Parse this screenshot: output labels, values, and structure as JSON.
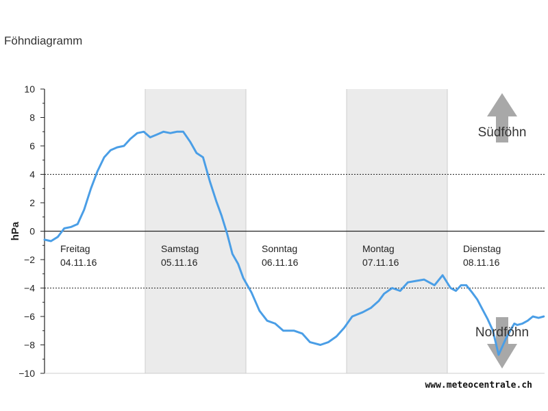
{
  "page": {
    "title": "Föhndiagramm"
  },
  "chart_data": {
    "type": "line",
    "ylabel": "hPa",
    "ylim": [
      -10,
      10
    ],
    "yticks": [
      10,
      8,
      6,
      4,
      2,
      0,
      -2,
      -4,
      -6,
      -8,
      -10
    ],
    "reference_lines": [
      4,
      -4
    ],
    "days": [
      {
        "name": "Freitag",
        "date": "04.11.16",
        "shaded": false
      },
      {
        "name": "Samstag",
        "date": "05.11.16",
        "shaded": true
      },
      {
        "name": "Sonntag",
        "date": "06.11.16",
        "shaded": false
      },
      {
        "name": "Montag",
        "date": "07.11.16",
        "shaded": true
      },
      {
        "name": "Dienstag",
        "date": "08.11.16",
        "shaded": false
      }
    ],
    "x_unit": "hours since Freitag 04.11.16 00:00",
    "xlim": [
      0,
      124
    ],
    "annotations": {
      "south": "Südföhn",
      "north": "Nordföhn"
    },
    "credit": "www.meteocentrale.ch",
    "series": [
      {
        "color": "#4a9ee6",
        "x": [
          0,
          1.6,
          3.3,
          4.9,
          6.6,
          8.2,
          9.8,
          11.5,
          13.1,
          14.8,
          16.4,
          18,
          19.7,
          21.3,
          23,
          24.6,
          26.2,
          27.9,
          29.5,
          31.2,
          32.8,
          34.4,
          36.1,
          37.7,
          39.3,
          41,
          42.6,
          43.9,
          45.3,
          46.6,
          48,
          49.3,
          51.3,
          53.3,
          55.2,
          57.2,
          59.2,
          61.9,
          63.9,
          65.8,
          68.4,
          70.4,
          72.4,
          74.3,
          76.3,
          78.9,
          80.9,
          82.9,
          84.2,
          86.2,
          88.2,
          90.1,
          92.1,
          94.1,
          96.7,
          98.7,
          100.7,
          102,
          103.3,
          104.6,
          106,
          107.3,
          108.6,
          109.9,
          111.2,
          112.6,
          114.5,
          116.5,
          117.2,
          118.5,
          119.8,
          121.1,
          122.5,
          123.8
        ],
        "y": [
          -0.6,
          -0.7,
          -0.4,
          0.2,
          0.3,
          0.5,
          1.5,
          3.0,
          4.2,
          5.2,
          5.7,
          5.9,
          6.0,
          6.5,
          6.9,
          7.0,
          6.6,
          6.8,
          7.0,
          6.9,
          7.0,
          7.0,
          6.3,
          5.5,
          5.2,
          3.5,
          2.1,
          1.1,
          -0.2,
          -1.6,
          -2.3,
          -3.3,
          -4.3,
          -5.6,
          -6.3,
          -6.5,
          -7.0,
          -7.0,
          -7.2,
          -7.8,
          -8.0,
          -7.8,
          -7.4,
          -6.8,
          -6.0,
          -5.7,
          -5.4,
          -4.9,
          -4.4,
          -4.0,
          -4.2,
          -3.6,
          -3.5,
          -3.4,
          -3.8,
          -3.1,
          -4.0,
          -4.2,
          -3.8,
          -3.8,
          -4.3,
          -4.8,
          -5.5,
          -6.2,
          -7.0,
          -8.7,
          -7.5,
          -6.5,
          -6.6,
          -6.5,
          -6.3,
          -6.0,
          -6.1,
          -6.0
        ]
      }
    ]
  }
}
